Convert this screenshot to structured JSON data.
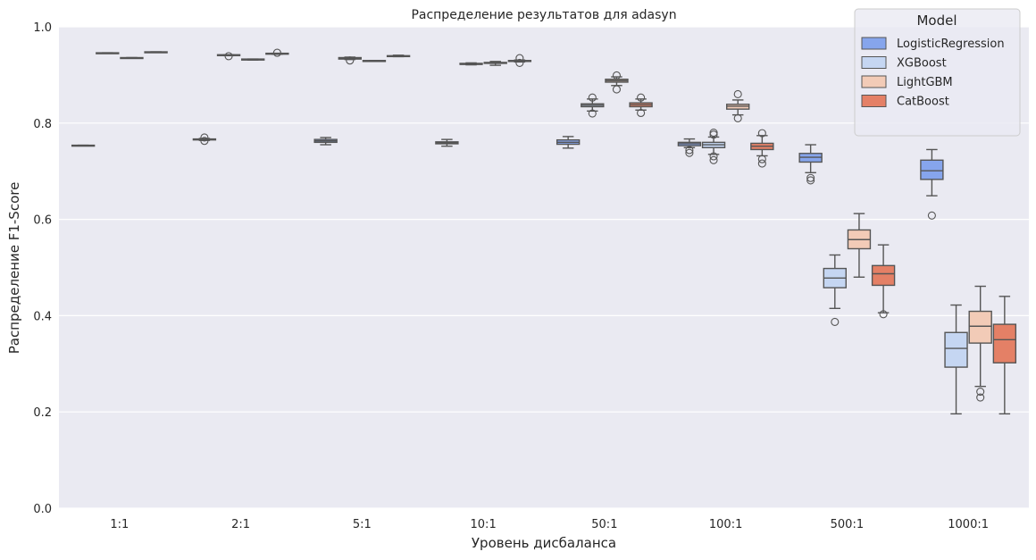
{
  "chart_data": {
    "type": "box",
    "title": "Распределение результатов для adasyn",
    "xlabel": "Уровень дисбаланса",
    "ylabel": "Распределение F1-Score",
    "ylim": [
      0,
      1
    ],
    "yticks": [
      "0.0",
      "0.2",
      "0.4",
      "0.6",
      "0.8",
      "1.0"
    ],
    "grid": true,
    "legend": {
      "title": "Model",
      "placement": "top-right"
    },
    "categories": [
      "1:1",
      "2:1",
      "5:1",
      "10:1",
      "50:1",
      "100:1",
      "500:1",
      "1000:1"
    ],
    "series": [
      {
        "name": "LogisticRegression",
        "color": "#86a5ec",
        "stats": [
          {
            "lo": 0.753,
            "q1": 0.753,
            "med": 0.753,
            "q3": 0.754,
            "hi": 0.754,
            "out": []
          },
          {
            "lo": 0.764,
            "q1": 0.765,
            "med": 0.766,
            "q3": 0.767,
            "hi": 0.768,
            "out": [
              0.77,
              0.763
            ]
          },
          {
            "lo": 0.755,
            "q1": 0.76,
            "med": 0.763,
            "q3": 0.766,
            "hi": 0.77,
            "out": []
          },
          {
            "lo": 0.752,
            "q1": 0.757,
            "med": 0.759,
            "q3": 0.761,
            "hi": 0.766,
            "out": []
          },
          {
            "lo": 0.748,
            "q1": 0.756,
            "med": 0.76,
            "q3": 0.765,
            "hi": 0.772,
            "out": []
          },
          {
            "lo": 0.749,
            "q1": 0.753,
            "med": 0.757,
            "q3": 0.76,
            "hi": 0.767,
            "out": [
              0.744,
              0.738
            ]
          },
          {
            "lo": 0.697,
            "q1": 0.719,
            "med": 0.729,
            "q3": 0.737,
            "hi": 0.755,
            "out": [
              0.686,
              0.681
            ]
          },
          {
            "lo": 0.649,
            "q1": 0.683,
            "med": 0.701,
            "q3": 0.723,
            "hi": 0.745,
            "out": [
              0.608
            ]
          }
        ]
      },
      {
        "name": "XGBoost",
        "color": "#c5d6f2",
        "stats": [
          {
            "lo": 0.945,
            "q1": 0.945,
            "med": 0.945,
            "q3": 0.946,
            "hi": 0.946,
            "out": []
          },
          {
            "lo": 0.94,
            "q1": 0.941,
            "med": 0.941,
            "q3": 0.942,
            "hi": 0.942,
            "out": [
              0.939
            ]
          },
          {
            "lo": 0.932,
            "q1": 0.933,
            "med": 0.934,
            "q3": 0.936,
            "hi": 0.937,
            "out": [
              0.93
            ]
          },
          {
            "lo": 0.921,
            "q1": 0.922,
            "med": 0.922,
            "q3": 0.924,
            "hi": 0.925,
            "out": []
          },
          {
            "lo": 0.825,
            "q1": 0.834,
            "med": 0.837,
            "q3": 0.84,
            "hi": 0.85,
            "out": [
              0.853,
              0.82
            ]
          },
          {
            "lo": 0.735,
            "q1": 0.749,
            "med": 0.755,
            "q3": 0.76,
            "hi": 0.771,
            "out": [
              0.78,
              0.776,
              0.731,
              0.723
            ]
          },
          {
            "lo": 0.415,
            "q1": 0.458,
            "med": 0.478,
            "q3": 0.498,
            "hi": 0.526,
            "out": [
              0.387
            ]
          },
          {
            "lo": 0.196,
            "q1": 0.293,
            "med": 0.332,
            "q3": 0.365,
            "hi": 0.422,
            "out": []
          }
        ]
      },
      {
        "name": "LightGBM",
        "color": "#f2cbb7",
        "stats": [
          {
            "lo": 0.935,
            "q1": 0.935,
            "med": 0.935,
            "q3": 0.936,
            "hi": 0.936,
            "out": []
          },
          {
            "lo": 0.931,
            "q1": 0.931,
            "med": 0.932,
            "q3": 0.933,
            "hi": 0.933,
            "out": []
          },
          {
            "lo": 0.928,
            "q1": 0.928,
            "med": 0.929,
            "q3": 0.93,
            "hi": 0.93,
            "out": []
          },
          {
            "lo": 0.92,
            "q1": 0.924,
            "med": 0.925,
            "q3": 0.926,
            "hi": 0.928,
            "out": []
          },
          {
            "lo": 0.878,
            "q1": 0.885,
            "med": 0.888,
            "q3": 0.891,
            "hi": 0.896,
            "out": [
              0.899,
              0.87
            ]
          },
          {
            "lo": 0.817,
            "q1": 0.829,
            "med": 0.835,
            "q3": 0.839,
            "hi": 0.848,
            "out": [
              0.86,
              0.81
            ]
          },
          {
            "lo": 0.48,
            "q1": 0.539,
            "med": 0.558,
            "q3": 0.578,
            "hi": 0.612,
            "out": []
          },
          {
            "lo": 0.253,
            "q1": 0.343,
            "med": 0.378,
            "q3": 0.409,
            "hi": 0.461,
            "out": [
              0.242,
              0.23
            ]
          }
        ]
      },
      {
        "name": "CatBoost",
        "color": "#e48066",
        "stats": [
          {
            "lo": 0.947,
            "q1": 0.947,
            "med": 0.947,
            "q3": 0.948,
            "hi": 0.948,
            "out": []
          },
          {
            "lo": 0.943,
            "q1": 0.944,
            "med": 0.944,
            "q3": 0.945,
            "hi": 0.945,
            "out": [
              0.946
            ]
          },
          {
            "lo": 0.938,
            "q1": 0.939,
            "med": 0.939,
            "q3": 0.94,
            "hi": 0.941,
            "out": []
          },
          {
            "lo": 0.927,
            "q1": 0.928,
            "med": 0.929,
            "q3": 0.93,
            "hi": 0.931,
            "out": [
              0.935,
              0.925
            ]
          },
          {
            "lo": 0.827,
            "q1": 0.834,
            "med": 0.838,
            "q3": 0.842,
            "hi": 0.85,
            "out": [
              0.853,
              0.821
            ]
          },
          {
            "lo": 0.732,
            "q1": 0.745,
            "med": 0.752,
            "q3": 0.758,
            "hi": 0.774,
            "out": [
              0.779,
              0.725,
              0.716
            ]
          },
          {
            "lo": 0.406,
            "q1": 0.463,
            "med": 0.487,
            "q3": 0.504,
            "hi": 0.547,
            "out": [
              0.403
            ]
          },
          {
            "lo": 0.196,
            "q1": 0.302,
            "med": 0.35,
            "q3": 0.382,
            "hi": 0.44,
            "out": []
          }
        ]
      }
    ]
  }
}
